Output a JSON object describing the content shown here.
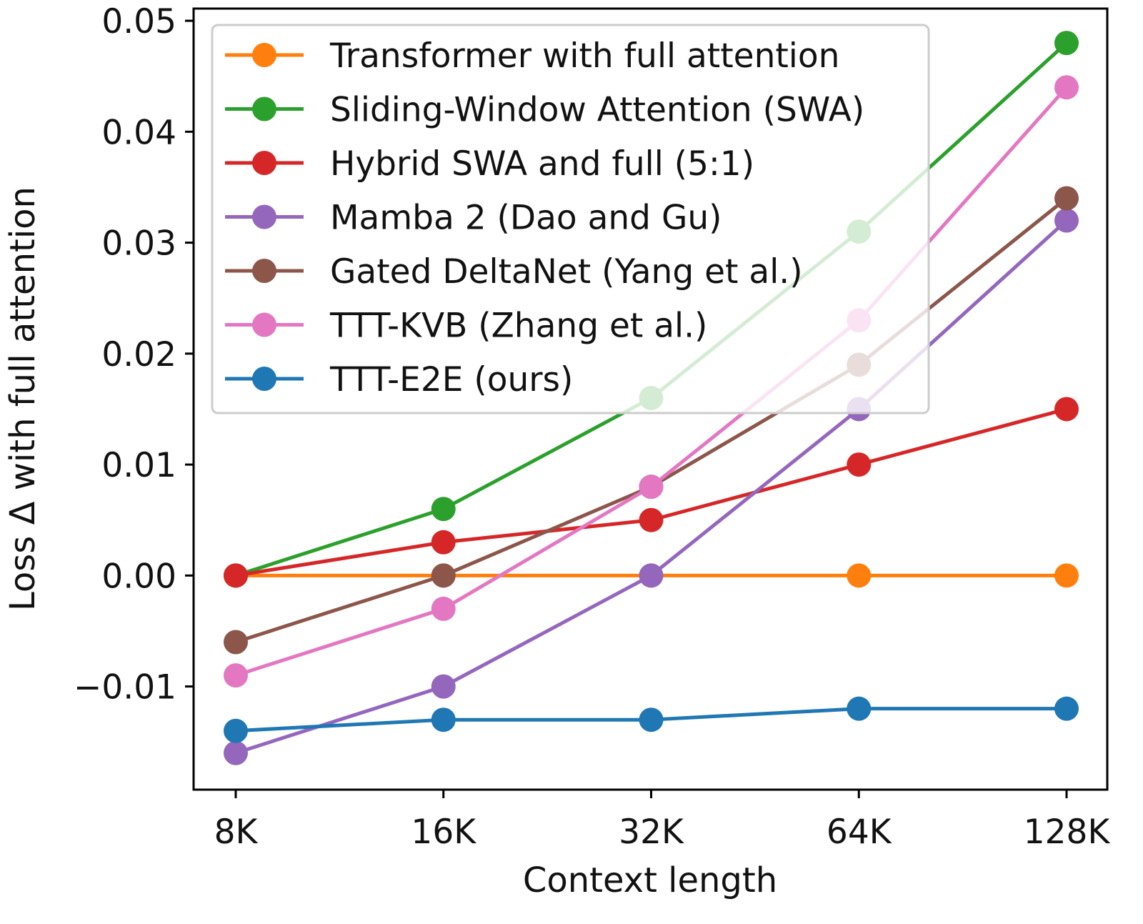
{
  "chart_data": {
    "type": "line",
    "title": "",
    "xlabel": "Context length",
    "ylabel": "Loss Δ with full attention",
    "categories": [
      "8K",
      "16K",
      "32K",
      "64K",
      "128K"
    ],
    "y_ticks": [
      -0.01,
      0.0,
      0.01,
      0.02,
      0.03,
      0.04,
      0.05
    ],
    "y_tick_labels": [
      "−0.01",
      "0.00",
      "0.01",
      "0.02",
      "0.03",
      "0.04",
      "0.05"
    ],
    "ylim": [
      -0.0193,
      0.0511
    ],
    "grid": false,
    "legend_position": "top-left",
    "series": [
      {
        "name": "Transformer with full attention",
        "color": "#ff7f0e",
        "values": [
          0.0,
          0.0,
          0.0,
          0.0,
          0.0
        ]
      },
      {
        "name": "Sliding-Window Attention (SWA)",
        "color": "#2ca02c",
        "values": [
          0.0,
          0.006,
          0.016,
          0.031,
          0.048
        ]
      },
      {
        "name": "Hybrid SWA and full (5:1)",
        "color": "#d62728",
        "values": [
          0.0,
          0.003,
          0.005,
          0.01,
          0.015
        ]
      },
      {
        "name": "Mamba 2 (Dao and Gu)",
        "color": "#9467bd",
        "values": [
          -0.016,
          -0.01,
          0.0,
          0.015,
          0.032
        ]
      },
      {
        "name": "Gated DeltaNet (Yang et al.)",
        "color": "#8c564b",
        "values": [
          -0.006,
          0.0,
          0.008,
          0.019,
          0.034
        ]
      },
      {
        "name": "TTT-KVB (Zhang et al.)",
        "color": "#e377c2",
        "values": [
          -0.009,
          -0.003,
          0.008,
          0.023,
          0.044
        ]
      },
      {
        "name": "TTT-E2E (ours)",
        "color": "#1f77b4",
        "values": [
          -0.014,
          -0.013,
          -0.013,
          -0.012,
          -0.012
        ]
      }
    ]
  }
}
